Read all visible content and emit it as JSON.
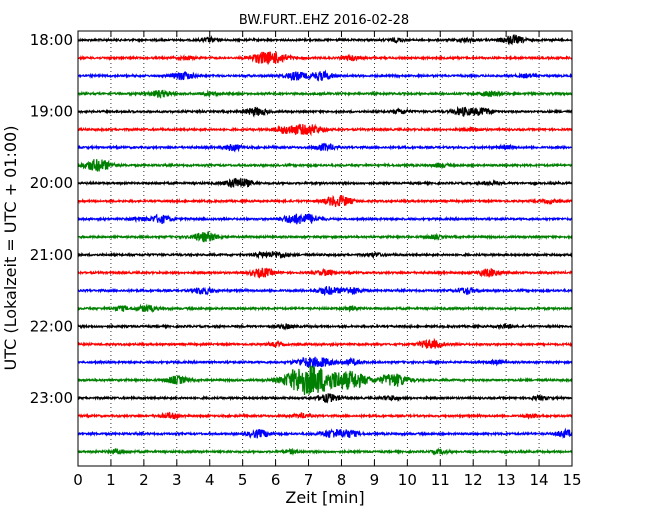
{
  "chart_data": {
    "type": "line",
    "title": "BW.FURT..EHZ 2016-02-28",
    "xlabel": "Zeit  [min]",
    "ylabel": "UTC (Lokalzeit = UTC + 01:00)",
    "xlim": [
      0,
      15
    ],
    "x_ticks": [
      "0",
      "1",
      "2",
      "3",
      "4",
      "5",
      "6",
      "7",
      "8",
      "9",
      "10",
      "11",
      "12",
      "13",
      "14",
      "15"
    ],
    "y_ticks": [
      {
        "label": "18:00",
        "row": 0
      },
      {
        "label": "19:00",
        "row": 4
      },
      {
        "label": "20:00",
        "row": 8
      },
      {
        "label": "21:00",
        "row": 12
      },
      {
        "label": "22:00",
        "row": 16
      },
      {
        "label": "23:00",
        "row": 20
      }
    ],
    "grid": true,
    "color_cycle": [
      "#000000",
      "#ff0000",
      "#0000ff",
      "#008000"
    ],
    "rows": [
      {
        "bursts": [
          [
            13.2,
            1.0
          ],
          [
            4.0,
            0.5
          ],
          [
            9.7,
            0.4
          ],
          [
            11.8,
            0.4
          ]
        ]
      },
      {
        "bursts": [
          [
            5.6,
            1.2
          ],
          [
            6.1,
            1.0
          ],
          [
            8.3,
            0.5
          ],
          [
            3.3,
            0.4
          ]
        ]
      },
      {
        "bursts": [
          [
            3.2,
            0.9
          ],
          [
            6.6,
            0.9
          ],
          [
            7.4,
            1.0
          ],
          [
            13.6,
            0.4
          ]
        ]
      },
      {
        "bursts": [
          [
            2.5,
            0.8
          ],
          [
            12.5,
            0.6
          ],
          [
            4.0,
            0.4
          ]
        ]
      },
      {
        "bursts": [
          [
            5.4,
            0.9
          ],
          [
            11.7,
            0.9
          ],
          [
            12.3,
            0.8
          ],
          [
            9.8,
            0.5
          ]
        ]
      },
      {
        "bursts": [
          [
            6.6,
            0.9
          ],
          [
            7.1,
            1.0
          ],
          [
            6.2,
            0.6
          ],
          [
            12.0,
            0.4
          ]
        ]
      },
      {
        "bursts": [
          [
            4.7,
            0.7
          ],
          [
            7.5,
            0.8
          ],
          [
            13.0,
            0.4
          ]
        ]
      },
      {
        "bursts": [
          [
            0.6,
            1.4
          ],
          [
            11.0,
            0.4
          ]
        ]
      },
      {
        "bursts": [
          [
            5.0,
            0.8
          ],
          [
            4.7,
            0.7
          ],
          [
            12.5,
            0.4
          ]
        ]
      },
      {
        "bursts": [
          [
            7.8,
            1.0
          ],
          [
            8.1,
            0.6
          ],
          [
            14.3,
            0.4
          ]
        ]
      },
      {
        "bursts": [
          [
            2.5,
            0.9
          ],
          [
            6.5,
            0.9
          ],
          [
            7.0,
            1.0
          ],
          [
            1.8,
            0.4
          ]
        ]
      },
      {
        "bursts": [
          [
            4.0,
            0.8
          ],
          [
            3.7,
            0.6
          ],
          [
            10.8,
            0.4
          ]
        ]
      },
      {
        "bursts": [
          [
            6.1,
            0.7
          ],
          [
            5.6,
            0.5
          ],
          [
            9.0,
            0.4
          ]
        ]
      },
      {
        "bursts": [
          [
            5.6,
            1.0
          ],
          [
            12.5,
            0.9
          ],
          [
            7.5,
            0.6
          ]
        ]
      },
      {
        "bursts": [
          [
            3.8,
            0.8
          ],
          [
            7.6,
            0.9
          ],
          [
            8.3,
            0.8
          ],
          [
            11.8,
            0.7
          ]
        ]
      },
      {
        "bursts": [
          [
            2.1,
            0.7
          ],
          [
            1.3,
            0.5
          ],
          [
            8.3,
            0.4
          ]
        ]
      },
      {
        "bursts": [
          [
            6.3,
            0.5
          ],
          [
            13.0,
            0.4
          ]
        ]
      },
      {
        "bursts": [
          [
            10.7,
            1.0
          ],
          [
            6.0,
            0.4
          ]
        ]
      },
      {
        "bursts": [
          [
            7.4,
            1.0
          ],
          [
            6.9,
            0.9
          ],
          [
            8.3,
            0.6
          ],
          [
            12.7,
            0.4
          ]
        ]
      },
      {
        "bursts": [
          [
            7.3,
            2.6
          ],
          [
            6.7,
            2.0
          ],
          [
            8.3,
            1.9
          ],
          [
            9.6,
            1.5
          ],
          [
            3.0,
            0.9
          ]
        ]
      },
      {
        "bursts": [
          [
            7.6,
            0.9
          ],
          [
            9.5,
            0.5
          ],
          [
            14.0,
            0.4
          ]
        ]
      },
      {
        "bursts": [
          [
            2.8,
            0.6
          ],
          [
            6.8,
            0.5
          ],
          [
            13.8,
            0.4
          ]
        ]
      },
      {
        "bursts": [
          [
            5.5,
            0.9
          ],
          [
            7.7,
            0.9
          ],
          [
            8.2,
            0.8
          ],
          [
            14.8,
            0.8
          ]
        ]
      },
      {
        "bursts": [
          [
            1.2,
            0.5
          ],
          [
            6.5,
            0.4
          ],
          [
            11.0,
            0.4
          ]
        ]
      }
    ]
  }
}
